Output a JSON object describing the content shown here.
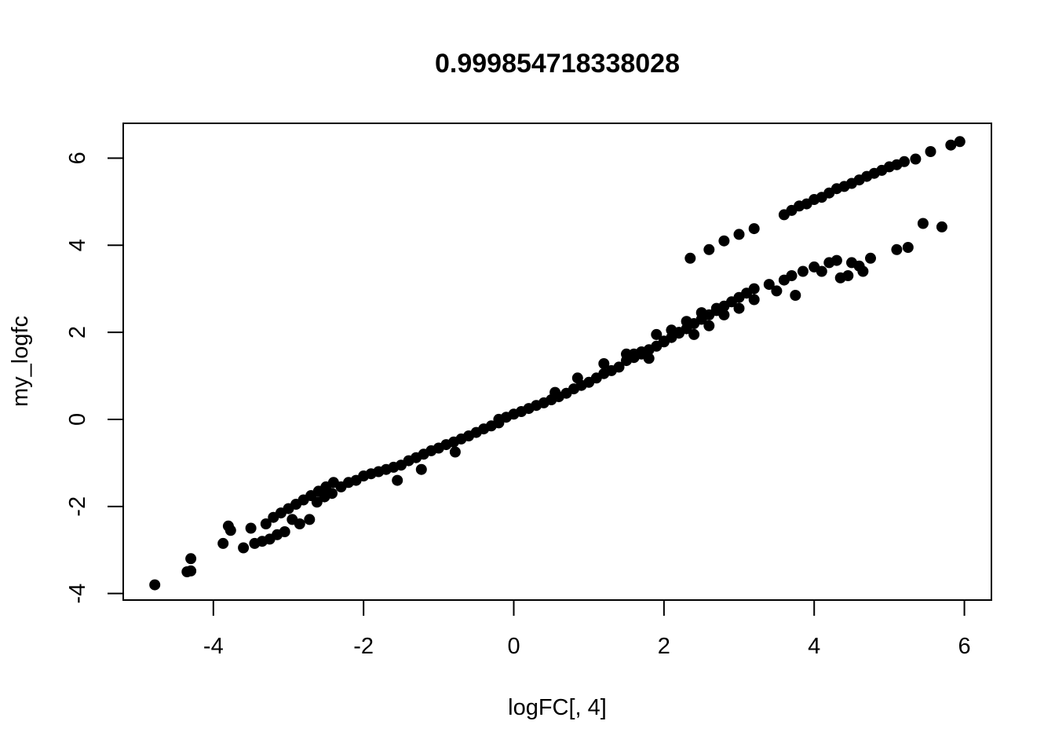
{
  "chart_data": {
    "type": "scatter",
    "title": "0.999854718338028",
    "xlabel": "logFC[, 4]",
    "ylabel": "my_logfc",
    "xlim": [
      -5.2,
      6.36
    ],
    "ylim": [
      -4.15,
      6.8
    ],
    "x_ticks": [
      -4,
      -2,
      0,
      2,
      4,
      6
    ],
    "y_ticks": [
      -4,
      -2,
      0,
      2,
      4,
      6
    ],
    "grid": false,
    "legend": "none",
    "marker_color": "#000000",
    "series": [
      {
        "values": [
          [
            -4.78,
            -3.8
          ],
          [
            -4.35,
            -3.5
          ],
          [
            -4.3,
            -3.48
          ],
          [
            -4.3,
            -3.2
          ],
          [
            -3.87,
            -2.85
          ],
          [
            -3.8,
            -2.45
          ],
          [
            -3.77,
            -2.55
          ],
          [
            -3.6,
            -2.95
          ],
          [
            -3.5,
            -2.5
          ],
          [
            -3.45,
            -2.85
          ],
          [
            -3.35,
            -2.8
          ],
          [
            -3.25,
            -2.75
          ],
          [
            -3.15,
            -2.65
          ],
          [
            -3.05,
            -2.58
          ],
          [
            -3.3,
            -2.4
          ],
          [
            -3.2,
            -2.25
          ],
          [
            -3.1,
            -2.15
          ],
          [
            -3.0,
            -2.05
          ],
          [
            -2.9,
            -1.95
          ],
          [
            -2.8,
            -1.85
          ],
          [
            -2.7,
            -1.75
          ],
          [
            -2.6,
            -1.65
          ],
          [
            -2.5,
            -1.55
          ],
          [
            -2.4,
            -1.45
          ],
          [
            -2.95,
            -2.3
          ],
          [
            -2.85,
            -2.4
          ],
          [
            -2.72,
            -2.3
          ],
          [
            -2.62,
            -1.9
          ],
          [
            -2.52,
            -1.78
          ],
          [
            -2.42,
            -1.7
          ],
          [
            -2.3,
            -1.55
          ],
          [
            -2.2,
            -1.45
          ],
          [
            -2.1,
            -1.4
          ],
          [
            -2.0,
            -1.3
          ],
          [
            -1.9,
            -1.25
          ],
          [
            -1.8,
            -1.2
          ],
          [
            -1.7,
            -1.15
          ],
          [
            -1.6,
            -1.1
          ],
          [
            -1.55,
            -1.4
          ],
          [
            -1.5,
            -1.05
          ],
          [
            -1.4,
            -0.95
          ],
          [
            -1.3,
            -0.88
          ],
          [
            -1.2,
            -0.8
          ],
          [
            -1.23,
            -1.15
          ],
          [
            -1.1,
            -0.72
          ],
          [
            -1.0,
            -0.66
          ],
          [
            -0.9,
            -0.58
          ],
          [
            -0.8,
            -0.52
          ],
          [
            -0.78,
            -0.75
          ],
          [
            -0.7,
            -0.45
          ],
          [
            -0.6,
            -0.38
          ],
          [
            -0.5,
            -0.3
          ],
          [
            -0.4,
            -0.22
          ],
          [
            -0.3,
            -0.15
          ],
          [
            -0.2,
            -0.08
          ],
          [
            -0.2,
            0.0
          ],
          [
            -0.1,
            0.05
          ],
          [
            0.0,
            0.12
          ],
          [
            0.1,
            0.18
          ],
          [
            0.2,
            0.25
          ],
          [
            0.3,
            0.32
          ],
          [
            0.4,
            0.38
          ],
          [
            0.5,
            0.45
          ],
          [
            0.55,
            0.62
          ],
          [
            0.6,
            0.52
          ],
          [
            0.7,
            0.6
          ],
          [
            0.8,
            0.7
          ],
          [
            0.85,
            0.95
          ],
          [
            0.9,
            0.78
          ],
          [
            1.0,
            0.85
          ],
          [
            1.1,
            0.95
          ],
          [
            1.2,
            1.05
          ],
          [
            1.2,
            1.28
          ],
          [
            1.3,
            1.12
          ],
          [
            1.4,
            1.2
          ],
          [
            1.5,
            1.35
          ],
          [
            1.5,
            1.5
          ],
          [
            1.6,
            1.42
          ],
          [
            1.7,
            1.5
          ],
          [
            1.8,
            1.6
          ],
          [
            1.9,
            1.68
          ],
          [
            2.0,
            1.78
          ],
          [
            2.1,
            1.88
          ],
          [
            2.2,
            1.98
          ],
          [
            2.3,
            2.08
          ],
          [
            2.4,
            2.2
          ],
          [
            2.5,
            2.3
          ],
          [
            2.6,
            2.4
          ],
          [
            2.7,
            2.5
          ],
          [
            2.8,
            2.6
          ],
          [
            2.9,
            2.7
          ],
          [
            3.0,
            2.8
          ],
          [
            3.1,
            2.9
          ],
          [
            3.2,
            3.0
          ],
          [
            3.4,
            3.1
          ],
          [
            3.5,
            2.95
          ],
          [
            3.6,
            3.2
          ],
          [
            3.7,
            3.3
          ],
          [
            3.75,
            2.85
          ],
          [
            3.85,
            3.4
          ],
          [
            4.0,
            3.5
          ],
          [
            4.1,
            3.4
          ],
          [
            4.2,
            3.6
          ],
          [
            4.3,
            3.65
          ],
          [
            4.5,
            3.6
          ],
          [
            2.0,
            1.8
          ],
          [
            2.2,
            2.0
          ],
          [
            2.4,
            1.95
          ],
          [
            2.6,
            2.15
          ],
          [
            2.8,
            2.4
          ],
          [
            3.0,
            2.55
          ],
          [
            3.2,
            2.75
          ],
          [
            1.8,
            1.4
          ],
          [
            1.7,
            1.55
          ],
          [
            1.6,
            1.5
          ],
          [
            1.9,
            1.95
          ],
          [
            2.1,
            2.05
          ],
          [
            2.3,
            2.25
          ],
          [
            2.5,
            2.45
          ],
          [
            2.7,
            2.55
          ],
          [
            2.35,
            3.7
          ],
          [
            2.6,
            3.9
          ],
          [
            2.8,
            4.1
          ],
          [
            3.0,
            4.25
          ],
          [
            3.2,
            4.38
          ],
          [
            3.6,
            4.7
          ],
          [
            3.7,
            4.8
          ],
          [
            3.8,
            4.9
          ],
          [
            3.9,
            4.95
          ],
          [
            4.0,
            5.05
          ],
          [
            4.1,
            5.1
          ],
          [
            4.2,
            5.2
          ],
          [
            4.3,
            5.3
          ],
          [
            4.4,
            5.35
          ],
          [
            4.5,
            5.42
          ],
          [
            4.6,
            5.5
          ],
          [
            4.7,
            5.58
          ],
          [
            4.8,
            5.65
          ],
          [
            4.9,
            5.72
          ],
          [
            5.0,
            5.8
          ],
          [
            5.1,
            5.85
          ],
          [
            5.2,
            5.92
          ],
          [
            5.35,
            5.98
          ],
          [
            5.55,
            6.15
          ],
          [
            5.82,
            6.3
          ],
          [
            5.94,
            6.38
          ],
          [
            4.75,
            3.7
          ],
          [
            5.1,
            3.9
          ],
          [
            5.25,
            3.95
          ],
          [
            5.45,
            4.5
          ],
          [
            5.7,
            4.42
          ],
          [
            4.35,
            3.25
          ],
          [
            4.45,
            3.3
          ],
          [
            4.6,
            3.52
          ],
          [
            4.65,
            3.4
          ]
        ]
      }
    ]
  }
}
